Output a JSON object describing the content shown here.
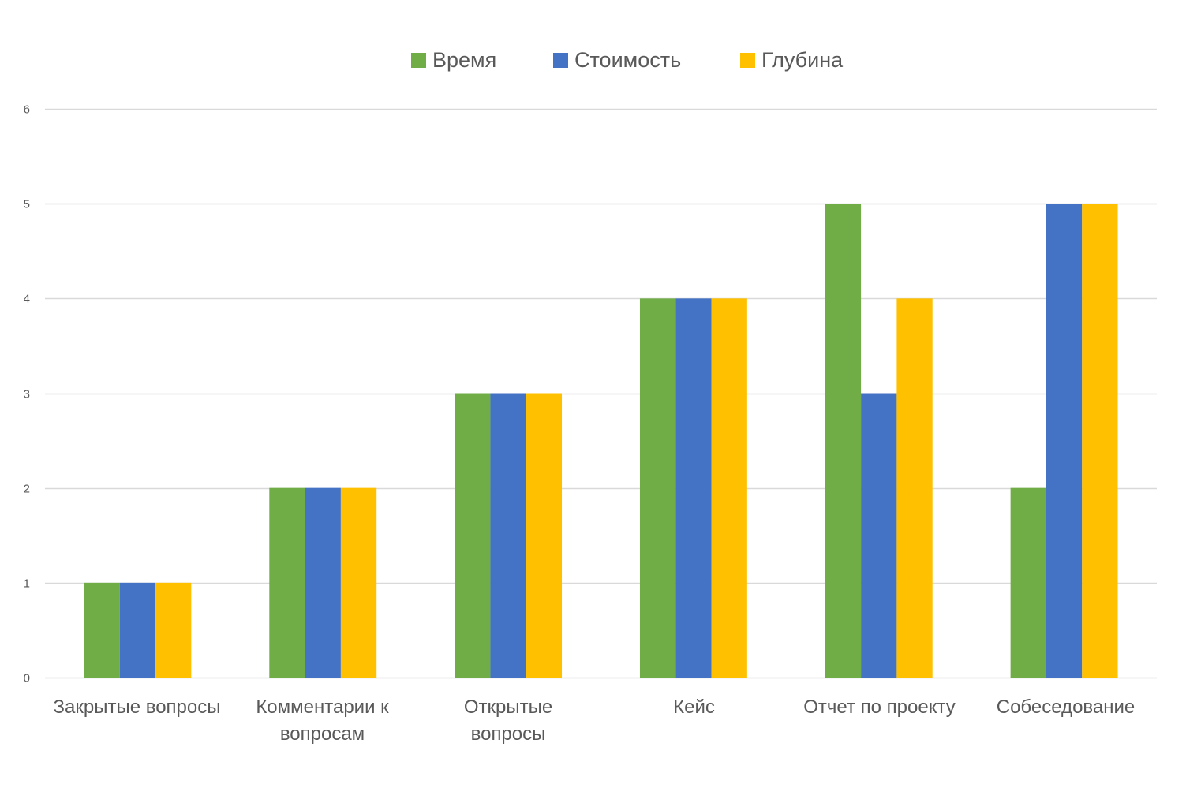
{
  "chart_data": {
    "type": "bar",
    "title": "",
    "xlabel": "",
    "ylabel": "",
    "ylim": [
      0,
      6
    ],
    "yticks": [
      0,
      1,
      2,
      3,
      4,
      5,
      6
    ],
    "grid": true,
    "legend_position": "top",
    "categories": [
      "Закрытые вопросы",
      "Комментарии к вопросам",
      "Открытые вопросы",
      "Кейс",
      "Отчет по проекту",
      "Собеседование"
    ],
    "series": [
      {
        "name": "Время",
        "color": "#70AD47",
        "values": [
          1,
          2,
          3,
          4,
          5,
          2
        ]
      },
      {
        "name": "Стоимость",
        "color": "#4472C4",
        "values": [
          1,
          2,
          3,
          4,
          3,
          5
        ]
      },
      {
        "name": "Глубина",
        "color": "#FFC000",
        "values": [
          1,
          2,
          3,
          4,
          4,
          5
        ]
      }
    ]
  }
}
